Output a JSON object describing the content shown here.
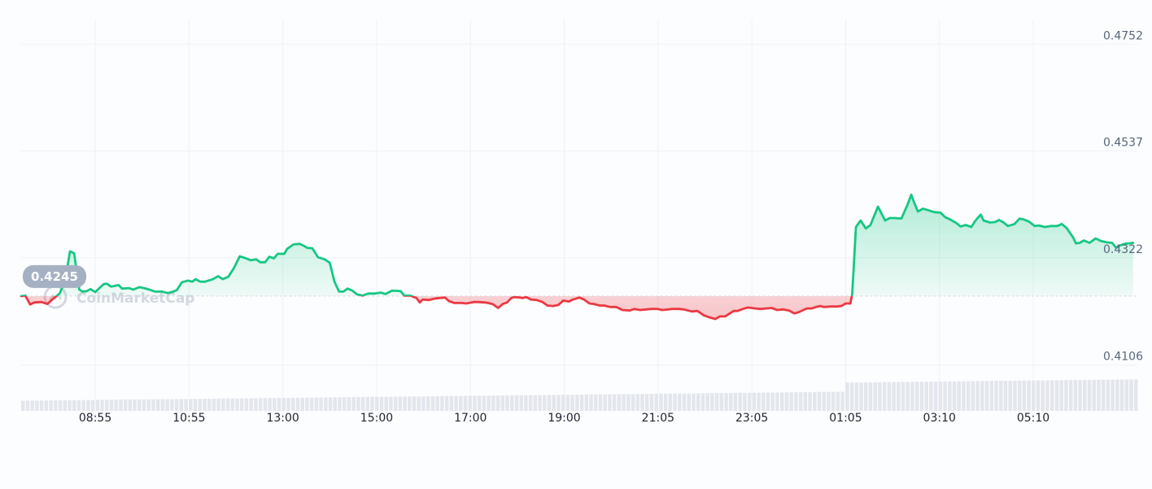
{
  "watermark": {
    "text": "CoinMarketCap"
  },
  "chart_data": {
    "type": "line",
    "reference": {
      "label": "0.4245",
      "value": 0.4245
    },
    "ylim": [
      0.4063,
      0.4795
    ],
    "y_ticks": [
      {
        "label": "0.4752",
        "value": 0.4752
      },
      {
        "label": "0.4537",
        "value": 0.4537
      },
      {
        "label": "0.4322",
        "value": 0.4322
      },
      {
        "label": "0.4106",
        "value": 0.4106
      }
    ],
    "x_ticks": [
      {
        "label": "08:55",
        "t": 1.58
      },
      {
        "label": "10:55",
        "t": 3.58
      },
      {
        "label": "13:00",
        "t": 5.58
      },
      {
        "label": "15:00",
        "t": 7.58
      },
      {
        "label": "17:00",
        "t": 9.58
      },
      {
        "label": "19:00",
        "t": 11.58
      },
      {
        "label": "21:05",
        "t": 13.58
      },
      {
        "label": "23:05",
        "t": 15.58
      },
      {
        "label": "01:05",
        "t": 17.58
      },
      {
        "label": "03:10",
        "t": 19.58
      },
      {
        "label": "05:10",
        "t": 21.58
      }
    ],
    "x_range": [
      0,
      23.8
    ],
    "colors": {
      "up": "#16c784",
      "down": "#ea3943",
      "grid": "#eff2f5",
      "volume": "#e3e6ec",
      "reference": "#cfd6e4",
      "badge": "#a6b0c3"
    },
    "series": [
      {
        "values": [
          [
            0.0,
            0.4245
          ],
          [
            0.09,
            0.4246
          ],
          [
            0.19,
            0.4228
          ],
          [
            0.28,
            0.4232
          ],
          [
            0.43,
            0.4233
          ],
          [
            0.56,
            0.4229
          ],
          [
            0.7,
            0.4241
          ],
          [
            0.82,
            0.425
          ],
          [
            0.92,
            0.4272
          ],
          [
            0.98,
            0.43
          ],
          [
            1.04,
            0.4335
          ],
          [
            1.13,
            0.4331
          ],
          [
            1.24,
            0.4258
          ],
          [
            1.31,
            0.4254
          ],
          [
            1.4,
            0.4255
          ],
          [
            1.48,
            0.4259
          ],
          [
            1.58,
            0.4253
          ],
          [
            1.69,
            0.4263
          ],
          [
            1.76,
            0.4269
          ],
          [
            1.82,
            0.427
          ],
          [
            1.92,
            0.4264
          ],
          [
            2.08,
            0.4267
          ],
          [
            2.15,
            0.426
          ],
          [
            2.3,
            0.4261
          ],
          [
            2.39,
            0.4258
          ],
          [
            2.52,
            0.4263
          ],
          [
            2.62,
            0.4261
          ],
          [
            2.73,
            0.4258
          ],
          [
            2.86,
            0.4254
          ],
          [
            3.0,
            0.4254
          ],
          [
            3.13,
            0.4251
          ],
          [
            3.24,
            0.4254
          ],
          [
            3.32,
            0.4257
          ],
          [
            3.43,
            0.4273
          ],
          [
            3.56,
            0.4276
          ],
          [
            3.65,
            0.4274
          ],
          [
            3.72,
            0.4279
          ],
          [
            3.82,
            0.4274
          ],
          [
            3.92,
            0.4274
          ],
          [
            4.09,
            0.4279
          ],
          [
            4.2,
            0.4285
          ],
          [
            4.3,
            0.4279
          ],
          [
            4.42,
            0.4284
          ],
          [
            4.54,
            0.4302
          ],
          [
            4.66,
            0.4325
          ],
          [
            4.76,
            0.4322
          ],
          [
            4.9,
            0.4317
          ],
          [
            5.01,
            0.4319
          ],
          [
            5.1,
            0.4313
          ],
          [
            5.2,
            0.4313
          ],
          [
            5.29,
            0.4324
          ],
          [
            5.39,
            0.4321
          ],
          [
            5.47,
            0.433
          ],
          [
            5.61,
            0.433
          ],
          [
            5.67,
            0.434
          ],
          [
            5.81,
            0.4349
          ],
          [
            5.94,
            0.435
          ],
          [
            6.03,
            0.4346
          ],
          [
            6.1,
            0.4342
          ],
          [
            6.21,
            0.4341
          ],
          [
            6.33,
            0.4323
          ],
          [
            6.47,
            0.4319
          ],
          [
            6.58,
            0.4312
          ],
          [
            6.68,
            0.4274
          ],
          [
            6.78,
            0.4254
          ],
          [
            6.87,
            0.4254
          ],
          [
            6.96,
            0.426
          ],
          [
            7.06,
            0.4256
          ],
          [
            7.17,
            0.4248
          ],
          [
            7.28,
            0.4246
          ],
          [
            7.4,
            0.425
          ],
          [
            7.54,
            0.425
          ],
          [
            7.67,
            0.4252
          ],
          [
            7.77,
            0.4249
          ],
          [
            7.91,
            0.4256
          ],
          [
            8.09,
            0.4255
          ],
          [
            8.17,
            0.4246
          ],
          [
            8.3,
            0.4246
          ],
          [
            8.43,
            0.4241
          ],
          [
            8.5,
            0.4232
          ],
          [
            8.56,
            0.4238
          ],
          [
            8.69,
            0.4237
          ],
          [
            8.83,
            0.424
          ],
          [
            8.92,
            0.4241
          ],
          [
            9.04,
            0.4242
          ],
          [
            9.12,
            0.4235
          ],
          [
            9.24,
            0.4231
          ],
          [
            9.4,
            0.4231
          ],
          [
            9.49,
            0.423
          ],
          [
            9.65,
            0.4233
          ],
          [
            9.75,
            0.4233
          ],
          [
            9.9,
            0.4232
          ],
          [
            10.05,
            0.4229
          ],
          [
            10.17,
            0.4221
          ],
          [
            10.27,
            0.4229
          ],
          [
            10.36,
            0.4232
          ],
          [
            10.45,
            0.4241
          ],
          [
            10.51,
            0.4243
          ],
          [
            10.63,
            0.4242
          ],
          [
            10.69,
            0.4241
          ],
          [
            10.77,
            0.4243
          ],
          [
            10.87,
            0.4238
          ],
          [
            10.99,
            0.4237
          ],
          [
            11.12,
            0.4233
          ],
          [
            11.22,
            0.4226
          ],
          [
            11.34,
            0.4225
          ],
          [
            11.45,
            0.4227
          ],
          [
            11.56,
            0.4236
          ],
          [
            11.68,
            0.4234
          ],
          [
            11.74,
            0.4237
          ],
          [
            11.9,
            0.4242
          ],
          [
            12.0,
            0.4238
          ],
          [
            12.12,
            0.423
          ],
          [
            12.21,
            0.4229
          ],
          [
            12.34,
            0.4226
          ],
          [
            12.43,
            0.4226
          ],
          [
            12.56,
            0.4223
          ],
          [
            12.69,
            0.4223
          ],
          [
            12.82,
            0.4217
          ],
          [
            12.98,
            0.4216
          ],
          [
            13.08,
            0.4219
          ],
          [
            13.2,
            0.4217
          ],
          [
            13.33,
            0.4218
          ],
          [
            13.43,
            0.4219
          ],
          [
            13.57,
            0.4219
          ],
          [
            13.67,
            0.4217
          ],
          [
            13.79,
            0.4218
          ],
          [
            13.89,
            0.4219
          ],
          [
            14.03,
            0.4219
          ],
          [
            14.13,
            0.4218
          ],
          [
            14.3,
            0.4214
          ],
          [
            14.42,
            0.4215
          ],
          [
            14.56,
            0.4206
          ],
          [
            14.68,
            0.4202
          ],
          [
            14.8,
            0.4199
          ],
          [
            14.9,
            0.4204
          ],
          [
            15.01,
            0.4204
          ],
          [
            15.19,
            0.4215
          ],
          [
            15.27,
            0.4215
          ],
          [
            15.39,
            0.4219
          ],
          [
            15.49,
            0.4222
          ],
          [
            15.65,
            0.422
          ],
          [
            15.77,
            0.4219
          ],
          [
            15.88,
            0.422
          ],
          [
            16.0,
            0.4221
          ],
          [
            16.12,
            0.4217
          ],
          [
            16.24,
            0.4218
          ],
          [
            16.37,
            0.4216
          ],
          [
            16.49,
            0.421
          ],
          [
            16.59,
            0.4213
          ],
          [
            16.75,
            0.422
          ],
          [
            16.86,
            0.422
          ],
          [
            16.95,
            0.4223
          ],
          [
            17.04,
            0.4225
          ],
          [
            17.11,
            0.4223
          ],
          [
            17.27,
            0.4224
          ],
          [
            17.39,
            0.4224
          ],
          [
            17.49,
            0.4225
          ],
          [
            17.58,
            0.423
          ],
          [
            17.68,
            0.423
          ],
          [
            17.72,
            0.4249
          ],
          [
            17.8,
            0.4384
          ],
          [
            17.9,
            0.4397
          ],
          [
            18.01,
            0.4381
          ],
          [
            18.11,
            0.4388
          ],
          [
            18.16,
            0.44
          ],
          [
            18.27,
            0.4425
          ],
          [
            18.42,
            0.4397
          ],
          [
            18.52,
            0.4402
          ],
          [
            18.63,
            0.4402
          ],
          [
            18.77,
            0.4401
          ],
          [
            18.9,
            0.4429
          ],
          [
            18.98,
            0.4449
          ],
          [
            19.03,
            0.4436
          ],
          [
            19.12,
            0.4415
          ],
          [
            19.23,
            0.4421
          ],
          [
            19.33,
            0.4418
          ],
          [
            19.47,
            0.4414
          ],
          [
            19.6,
            0.4413
          ],
          [
            19.7,
            0.4404
          ],
          [
            19.81,
            0.4399
          ],
          [
            19.94,
            0.4392
          ],
          [
            20.03,
            0.4385
          ],
          [
            20.14,
            0.4388
          ],
          [
            20.26,
            0.4384
          ],
          [
            20.35,
            0.4397
          ],
          [
            20.46,
            0.4409
          ],
          [
            20.52,
            0.4397
          ],
          [
            20.66,
            0.4393
          ],
          [
            20.77,
            0.4394
          ],
          [
            20.85,
            0.4398
          ],
          [
            20.95,
            0.4393
          ],
          [
            21.04,
            0.4386
          ],
          [
            21.18,
            0.439
          ],
          [
            21.29,
            0.4401
          ],
          [
            21.38,
            0.4399
          ],
          [
            21.49,
            0.4395
          ],
          [
            21.61,
            0.4386
          ],
          [
            21.7,
            0.4387
          ],
          [
            21.83,
            0.4384
          ],
          [
            21.96,
            0.4386
          ],
          [
            22.09,
            0.4386
          ],
          [
            22.19,
            0.439
          ],
          [
            22.29,
            0.4382
          ],
          [
            22.43,
            0.4363
          ],
          [
            22.49,
            0.4351
          ],
          [
            22.57,
            0.4352
          ],
          [
            22.66,
            0.4357
          ],
          [
            22.78,
            0.4352
          ],
          [
            22.91,
            0.4361
          ],
          [
            23.02,
            0.4356
          ],
          [
            23.15,
            0.4353
          ],
          [
            23.26,
            0.4352
          ],
          [
            23.35,
            0.4342
          ],
          [
            23.43,
            0.4347
          ],
          [
            23.53,
            0.435
          ],
          [
            23.71,
            0.4352
          ]
        ]
      }
    ],
    "volume": {
      "start": 0.1,
      "end": 0.22,
      "note_scale": "relative"
    }
  }
}
